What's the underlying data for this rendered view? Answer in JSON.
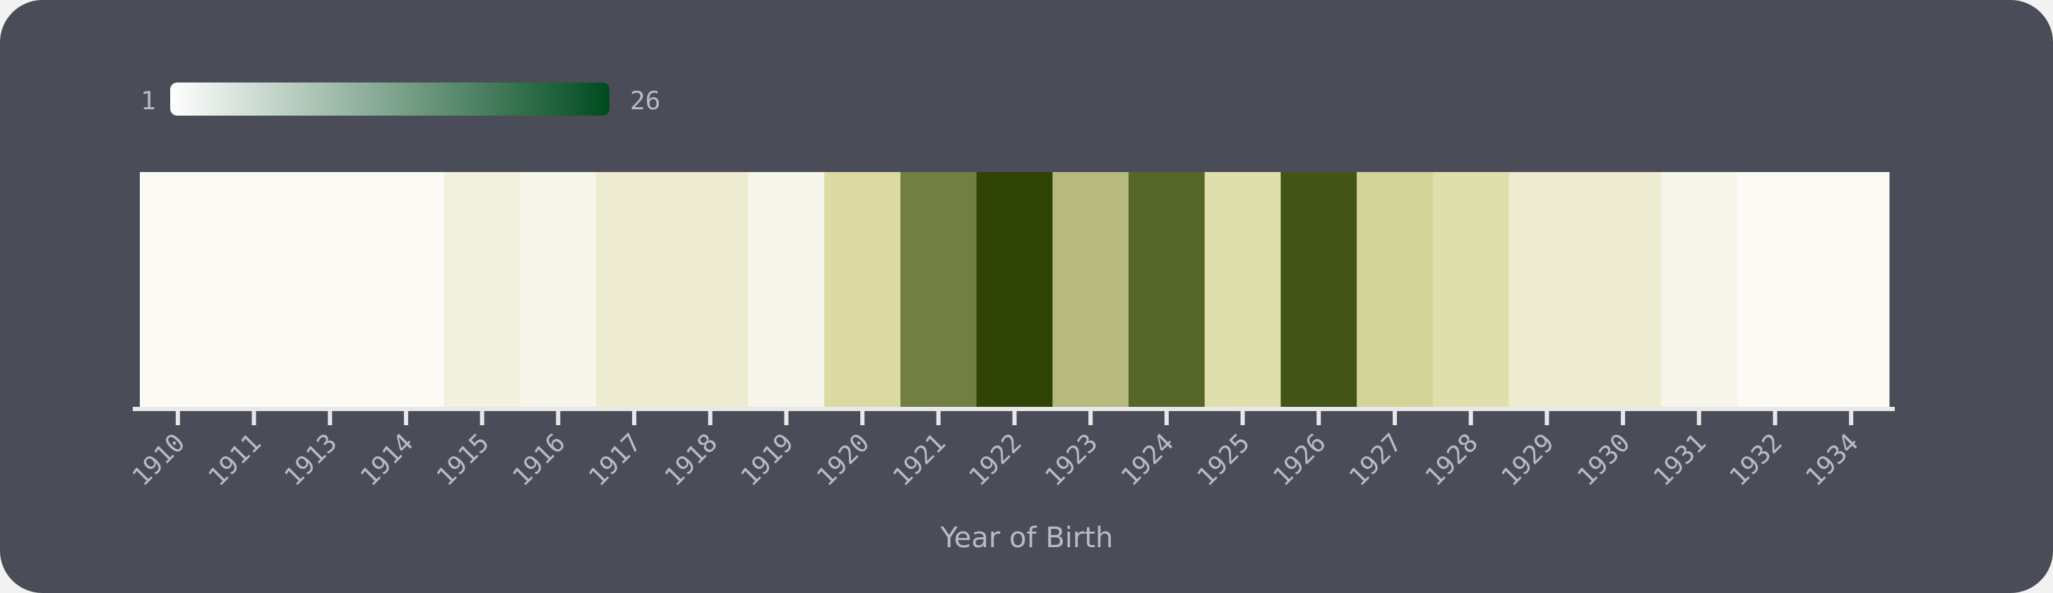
{
  "chart_data": {
    "type": "heatmap",
    "xlabel": "Year of Birth",
    "categories": [
      "1910",
      "1911",
      "1913",
      "1914",
      "1915",
      "1916",
      "1917",
      "1918",
      "1919",
      "1920",
      "1921",
      "1922",
      "1923",
      "1924",
      "1925",
      "1926",
      "1927",
      "1928",
      "1929",
      "1930",
      "1931",
      "1932",
      "1934"
    ],
    "values": [
      1,
      1,
      1,
      1,
      3,
      2,
      4,
      4,
      2,
      8,
      19,
      26,
      12,
      22,
      7,
      24,
      9,
      7,
      4,
      4,
      2,
      1,
      1
    ],
    "color_scale": {
      "min": 1,
      "max": 26,
      "min_label": "1",
      "max_label": "26",
      "gradient_colors": [
        "#ffffff",
        "#004b1f"
      ]
    },
    "cell_colors": {
      "low": "#fbfaf5",
      "mid": "#d8d89c",
      "high": "#2f4406"
    },
    "grid": false,
    "legend_position": "top-left"
  }
}
